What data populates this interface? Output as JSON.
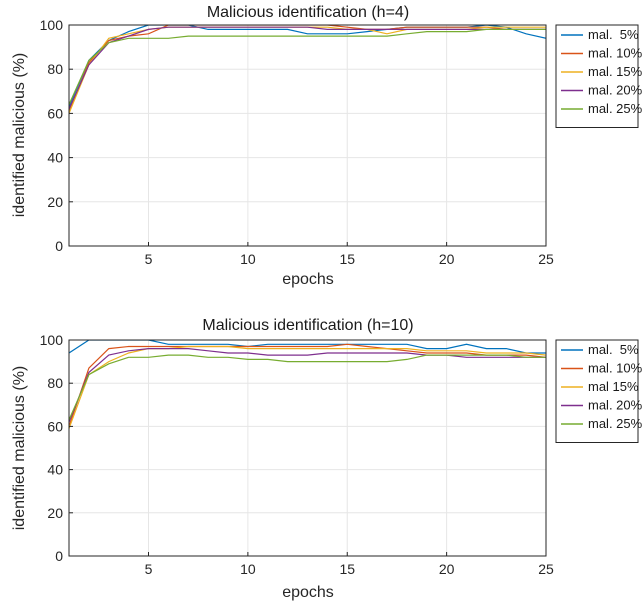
{
  "chart_data": [
    {
      "type": "line",
      "title": "Malicious identification (h=4)",
      "xlabel": "epochs",
      "ylabel": "identified malicious (%)",
      "xlim": [
        1,
        25
      ],
      "ylim": [
        0,
        100
      ],
      "xticks": [
        5,
        10,
        15,
        20,
        25
      ],
      "yticks": [
        0,
        20,
        40,
        60,
        80,
        100
      ],
      "grid": true,
      "legend_position": "outside-right",
      "x": [
        1,
        2,
        3,
        4,
        5,
        6,
        7,
        8,
        9,
        10,
        11,
        12,
        13,
        14,
        15,
        16,
        17,
        18,
        19,
        20,
        21,
        22,
        23,
        24,
        25
      ],
      "series": [
        {
          "name": "mal.  5%",
          "color": "#0072BD",
          "values": [
            63,
            84,
            93,
            97,
            100,
            100,
            100,
            98,
            98,
            98,
            98,
            98,
            96,
            96,
            96,
            97,
            98,
            99,
            99,
            99,
            99,
            100,
            99,
            96,
            94
          ]
        },
        {
          "name": "mal. 10%",
          "color": "#D95319",
          "values": [
            61,
            83,
            93,
            95,
            96,
            100,
            100,
            100,
            100,
            100,
            100,
            100,
            100,
            100,
            99,
            98,
            98,
            99,
            99,
            99,
            99,
            99,
            98,
            98,
            98
          ]
        },
        {
          "name": "mal. 15%",
          "color": "#EDB120",
          "values": [
            60,
            82,
            94,
            96,
            98,
            99,
            99,
            99,
            99,
            99,
            99,
            99,
            99,
            99,
            98,
            98,
            96,
            98,
            98,
            98,
            98,
            99,
            99,
            99,
            99
          ]
        },
        {
          "name": "mal. 20%",
          "color": "#7E2F8E",
          "values": [
            62,
            82,
            92,
            95,
            98,
            99,
            99,
            99,
            99,
            99,
            99,
            99,
            99,
            98,
            98,
            98,
            98,
            98,
            98,
            98,
            98,
            98,
            98,
            98,
            98
          ]
        },
        {
          "name": "mal. 25%",
          "color": "#77AC30",
          "values": [
            64,
            84,
            92,
            94,
            94,
            94,
            95,
            95,
            95,
            95,
            95,
            95,
            95,
            95,
            95,
            95,
            95,
            96,
            97,
            97,
            97,
            98,
            98,
            98,
            98
          ]
        }
      ]
    },
    {
      "type": "line",
      "title": "Malicious identification (h=10)",
      "xlabel": "epochs",
      "ylabel": "identified malicious (%)",
      "xlim": [
        1,
        25
      ],
      "ylim": [
        0,
        100
      ],
      "xticks": [
        5,
        10,
        15,
        20,
        25
      ],
      "yticks": [
        0,
        20,
        40,
        60,
        80,
        100
      ],
      "grid": true,
      "legend_position": "outside-right",
      "x": [
        1,
        2,
        3,
        4,
        5,
        6,
        7,
        8,
        9,
        10,
        11,
        12,
        13,
        14,
        15,
        16,
        17,
        18,
        19,
        20,
        21,
        22,
        23,
        24,
        25
      ],
      "series": [
        {
          "name": "mal.  5%",
          "color": "#0072BD",
          "values": [
            94,
            100,
            100,
            100,
            100,
            98,
            98,
            98,
            98,
            97,
            98,
            98,
            98,
            98,
            98,
            98,
            98,
            98,
            96,
            96,
            98,
            96,
            96,
            94,
            94
          ]
        },
        {
          "name": "mal. 10%",
          "color": "#D95319",
          "values": [
            60,
            87,
            96,
            97,
            97,
            97,
            97,
            97,
            97,
            97,
            97,
            97,
            97,
            97,
            98,
            97,
            96,
            95,
            94,
            94,
            94,
            93,
            93,
            93,
            92
          ]
        },
        {
          "name": "mal 15%",
          "color": "#EDB120",
          "values": [
            59,
            84,
            90,
            94,
            96,
            96,
            97,
            97,
            97,
            96,
            96,
            96,
            96,
            96,
            96,
            96,
            96,
            96,
            95,
            95,
            95,
            94,
            94,
            94,
            93
          ]
        },
        {
          "name": "mal. 20%",
          "color": "#7E2F8E",
          "values": [
            62,
            85,
            93,
            95,
            96,
            96,
            96,
            95,
            94,
            94,
            93,
            93,
            93,
            94,
            94,
            94,
            94,
            94,
            93,
            93,
            92,
            92,
            92,
            92,
            92
          ]
        },
        {
          "name": "mal. 25%",
          "color": "#77AC30",
          "values": [
            63,
            84,
            89,
            92,
            92,
            93,
            93,
            92,
            92,
            91,
            91,
            90,
            90,
            90,
            90,
            90,
            90,
            91,
            93,
            93,
            93,
            93,
            93,
            92,
            92
          ]
        }
      ]
    }
  ]
}
